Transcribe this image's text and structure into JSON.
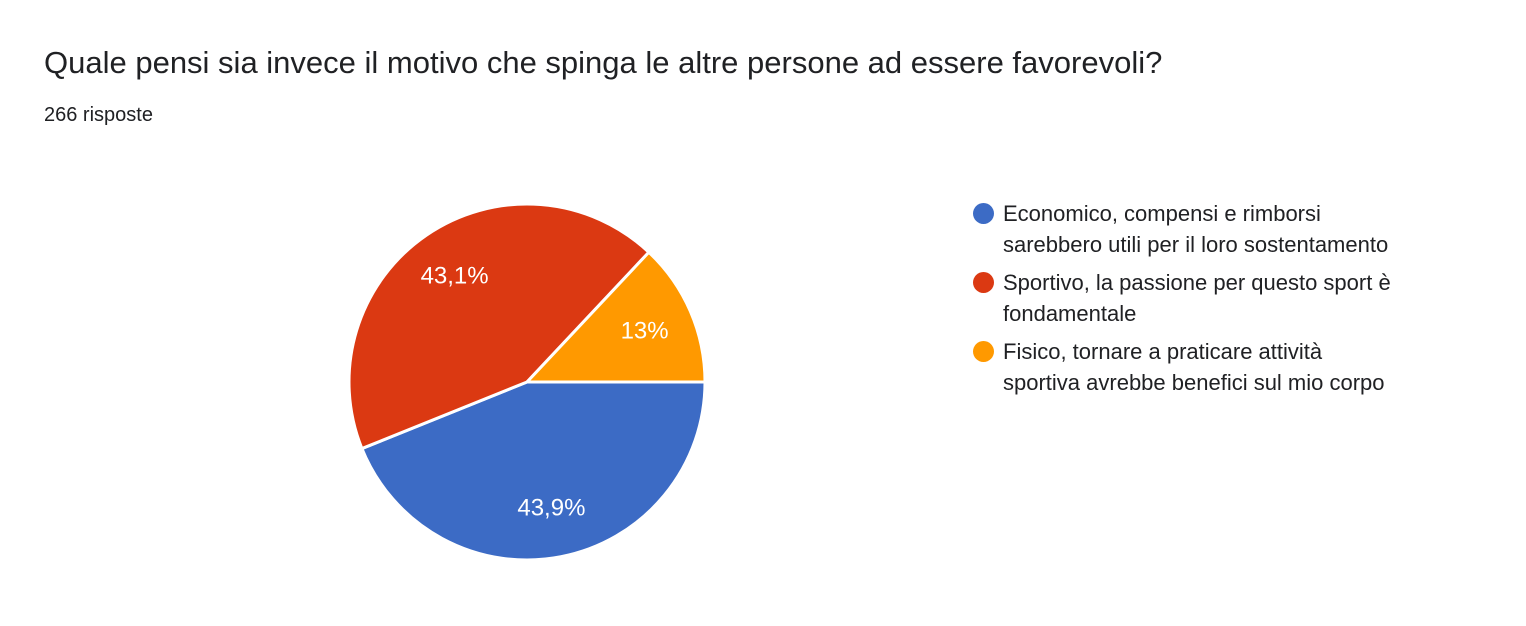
{
  "header": {
    "title": "Quale pensi sia invece il motivo che spinga le altre persone ad essere favorevoli?",
    "responses_count": "266 risposte"
  },
  "colors": {
    "blue": "#3C6BC5",
    "red": "#DB3912",
    "orange": "#FF9900",
    "text": "#202124",
    "slice_label": "#FFFFFF",
    "background": "#FFFFFF"
  },
  "chart_data": {
    "type": "pie",
    "title": "Quale pensi sia invece il motivo che spinga le altre persone ad essere favorevoli?",
    "subtitle": "266 risposte",
    "legend_position": "right",
    "start_angle_deg_clockwise_from_east": 0,
    "slices": [
      {
        "name": "economico",
        "label": "Economico, compensi e rimborsi sarebbero utili per il loro sostentamento",
        "pct": 43.9,
        "display": "43,9%",
        "color": "#3C6BC5"
      },
      {
        "name": "sportivo",
        "label": "Sportivo, la passione per questo sport è fondamentale",
        "pct": 43.1,
        "display": "43,1%",
        "color": "#DB3912"
      },
      {
        "name": "fisico",
        "label": "Fisico, tornare a praticare attività sportiva avrebbe benefici sul mio corpo",
        "pct": 13,
        "display": "13%",
        "color": "#FF9900"
      }
    ]
  },
  "legend": {
    "items": [
      {
        "color": "#3C6BC5",
        "label": "Economico, compensi e rimborsi sarebbero utili per il loro sostentamento",
        "lines": [
          "Economico, compensi e rimborsi",
          "sarebbero utili per il loro sostentamento"
        ]
      },
      {
        "color": "#DB3912",
        "label": "Sportivo, la passione per questo sport è fondamentale",
        "lines": [
          "Sportivo, la passione per questo sport è",
          "fondamentale"
        ]
      },
      {
        "color": "#FF9900",
        "label": "Fisico, tornare a praticare attività sportiva avrebbe benefici sul mio corpo",
        "lines": [
          "Fisico, tornare a praticare attività",
          "sportiva avrebbe benefici sul mio corpo"
        ]
      }
    ]
  }
}
